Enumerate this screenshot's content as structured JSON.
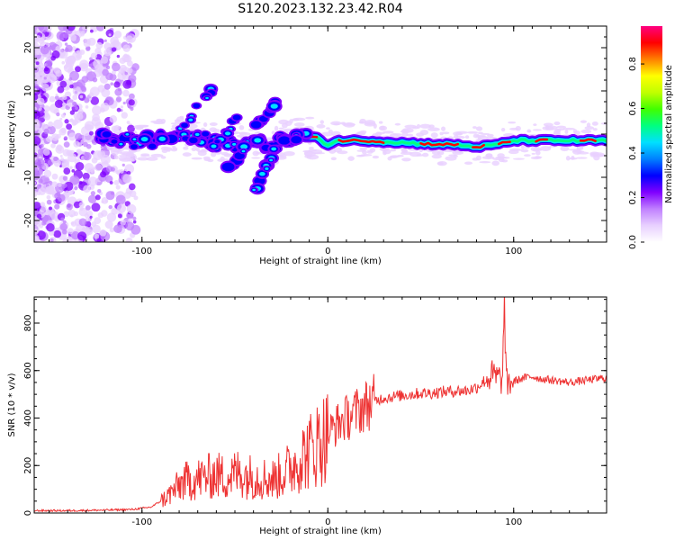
{
  "title": "S120.2023.132.23.42.R04",
  "colors": {
    "colormap": [
      "#ffffff",
      "#e8d0ff",
      "#c080ff",
      "#8000ff",
      "#0000ff",
      "#0080ff",
      "#00e0ff",
      "#00ff80",
      "#40ff00",
      "#c0ff00",
      "#ffff00",
      "#ff8000",
      "#ff0000",
      "#ff0080"
    ],
    "snr_line": "#ee3333"
  },
  "chart_data": [
    {
      "type": "heatmap",
      "xlabel": "Height of straight line (km)",
      "ylabel": "Frequency (Hz)",
      "xlim": [
        -158,
        150
      ],
      "ylim": [
        -25,
        25
      ],
      "xticks": [
        -100,
        0,
        100
      ],
      "yticks": [
        -20,
        -10,
        0,
        10,
        20
      ],
      "colorbar": {
        "label": "Normalized spectral amplitude",
        "range": [
          0.0,
          0.97
        ],
        "ticks": [
          0.0,
          0.2,
          0.4,
          0.6,
          0.8
        ]
      },
      "ridge": [
        [
          -120,
          -1.5
        ],
        [
          -100,
          -1.5
        ],
        [
          -80,
          -0.5
        ],
        [
          -60,
          -2
        ],
        [
          -45,
          -2
        ],
        [
          -30,
          -2.5
        ],
        [
          -15,
          -0.5
        ],
        [
          -5,
          -1
        ],
        [
          0,
          -2.5
        ],
        [
          5,
          -1.5
        ],
        [
          20,
          -1.5
        ],
        [
          50,
          -2.2
        ],
        [
          70,
          -2.5
        ],
        [
          80,
          -3
        ],
        [
          90,
          -2.5
        ],
        [
          100,
          -1.5
        ],
        [
          120,
          -1.5
        ],
        [
          150,
          -1.5
        ]
      ],
      "branches": [
        [
          [
            -80,
            0
          ],
          [
            -72,
            5
          ],
          [
            -62,
            10
          ]
        ],
        [
          [
            -62,
            -4
          ],
          [
            -55,
            0
          ],
          [
            -48,
            5
          ]
        ],
        [
          [
            -55,
            -8
          ],
          [
            -50,
            -6
          ],
          [
            -45,
            -3
          ]
        ],
        [
          [
            -40,
            -14
          ],
          [
            -36,
            -10
          ],
          [
            -30,
            -6
          ]
        ],
        [
          [
            -40,
            1
          ],
          [
            -33,
            4
          ],
          [
            -28,
            7
          ]
        ]
      ]
    },
    {
      "type": "line",
      "xlabel": "Height of straight line (km)",
      "ylabel": "SNR (10 * v/v)",
      "xlim": [
        -158,
        150
      ],
      "ylim": [
        0,
        910
      ],
      "xticks": [
        -100,
        0,
        100
      ],
      "yticks": [
        0,
        200,
        400,
        600,
        800
      ],
      "series": [
        {
          "x": [
            -158,
            -140,
            -120,
            -105,
            -95,
            -88,
            -82,
            -78,
            -72,
            -66,
            -60,
            -54,
            -48,
            -42,
            -36,
            -30,
            -25,
            -20,
            -15,
            -10,
            -6,
            -3,
            0,
            3,
            6,
            10,
            14,
            18,
            22,
            26,
            30,
            35,
            40,
            45,
            50,
            55,
            60,
            65,
            70,
            75,
            80,
            85,
            88,
            91,
            94,
            95,
            96,
            98,
            102,
            106,
            110,
            115,
            120,
            125,
            130,
            135,
            140,
            145,
            150
          ],
          "y": [
            10,
            10,
            12,
            15,
            25,
            60,
            100,
            130,
            140,
            150,
            160,
            150,
            170,
            155,
            150,
            140,
            160,
            190,
            230,
            260,
            290,
            310,
            330,
            360,
            380,
            400,
            420,
            440,
            460,
            475,
            485,
            490,
            495,
            500,
            505,
            505,
            510,
            512,
            515,
            515,
            530,
            560,
            580,
            570,
            560,
            900,
            540,
            550,
            560,
            570,
            575,
            565,
            560,
            555,
            550,
            555,
            560,
            565,
            570
          ]
        }
      ]
    }
  ]
}
